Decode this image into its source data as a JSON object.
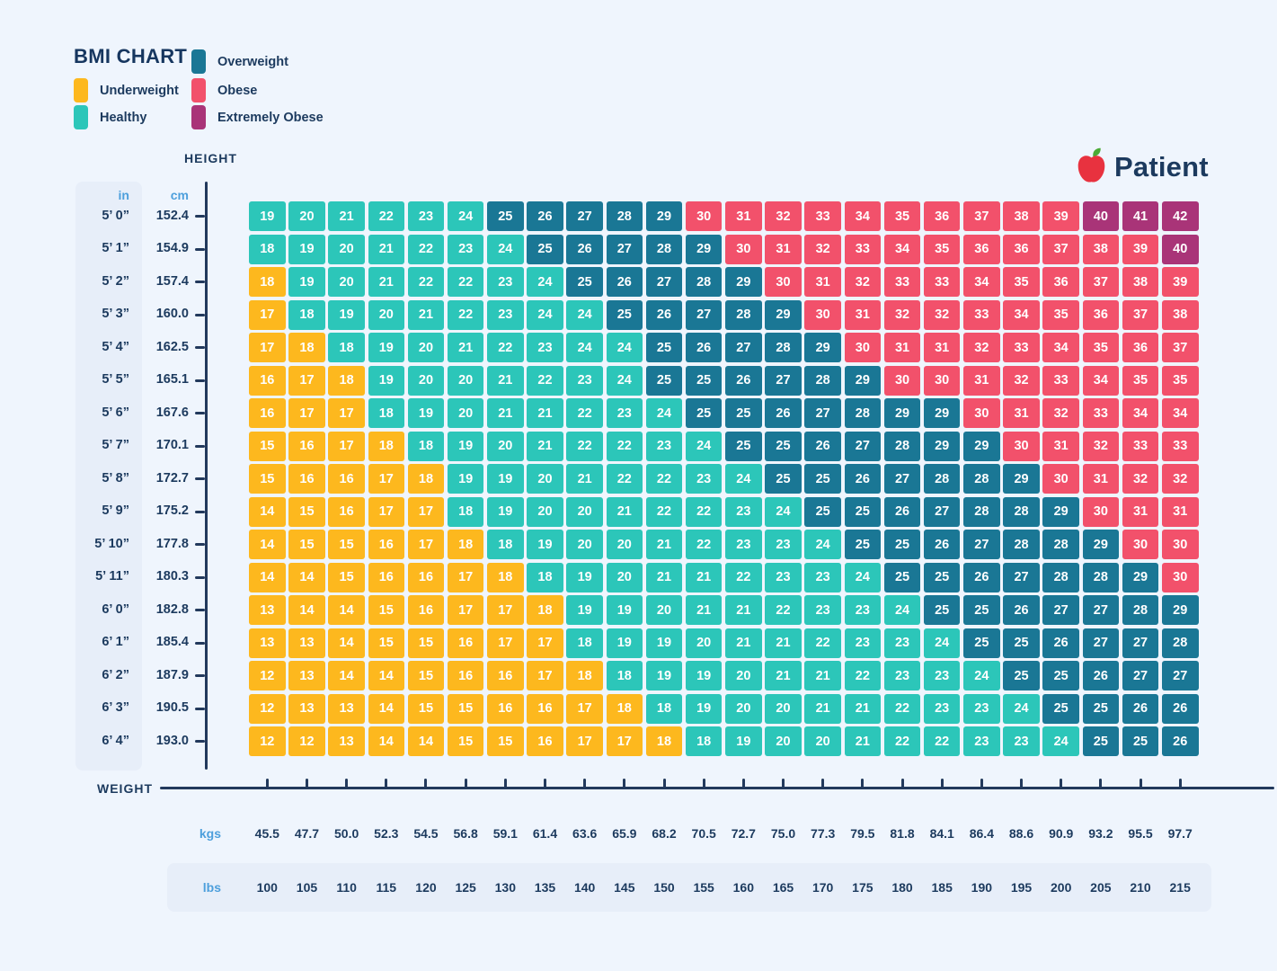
{
  "title": "BMI CHART",
  "legend": {
    "items": [
      {
        "key": "underweight",
        "label": "Underweight",
        "color": "#FDB81E"
      },
      {
        "key": "healthy",
        "label": "Healthy",
        "color": "#2CC6B9"
      },
      {
        "key": "overweight",
        "label": "Overweight",
        "color": "#1A7795"
      },
      {
        "key": "obese",
        "label": "Obese",
        "color": "#F2516B"
      },
      {
        "key": "extremely-obese",
        "label": "Extremely Obese",
        "color": "#A93478"
      }
    ]
  },
  "logo": {
    "brand": "Patient"
  },
  "axis": {
    "height_title": "HEIGHT",
    "weight_title": "WEIGHT",
    "in_header": "in",
    "cm_header": "cm",
    "kgs_label": "kgs",
    "lbs_label": "lbs"
  },
  "chart_data": {
    "type": "heatmap",
    "title": "BMI CHART",
    "x_axis_label": "WEIGHT",
    "y_axis_label": "HEIGHT",
    "category_colors": {
      "u": "#FDB81E",
      "h": "#2CC6B9",
      "o": "#1A7795",
      "b": "#F2516B",
      "e": "#A93478"
    },
    "category_names": {
      "u": "Underweight",
      "h": "Healthy",
      "o": "Overweight",
      "b": "Obese",
      "e": "Extremely Obese"
    },
    "x_axis": {
      "kgs": [
        "45.5",
        "47.7",
        "50.0",
        "52.3",
        "54.5",
        "56.8",
        "59.1",
        "61.4",
        "63.6",
        "65.9",
        "68.2",
        "70.5",
        "72.7",
        "75.0",
        "77.3",
        "79.5",
        "81.8",
        "84.1",
        "86.4",
        "88.6",
        "90.9",
        "93.2",
        "95.5",
        "97.7"
      ],
      "lbs": [
        "100",
        "105",
        "110",
        "115",
        "120",
        "125",
        "130",
        "135",
        "140",
        "145",
        "150",
        "155",
        "160",
        "165",
        "170",
        "175",
        "180",
        "185",
        "190",
        "195",
        "200",
        "205",
        "210",
        "215"
      ]
    },
    "rows": [
      {
        "ft": "5’ 0”",
        "cm": "152.4",
        "bmi": [
          19,
          20,
          21,
          22,
          23,
          24,
          25,
          26,
          27,
          28,
          29,
          30,
          31,
          32,
          33,
          34,
          35,
          36,
          37,
          38,
          39,
          40,
          41,
          42
        ],
        "cat": "hhhhhhooooobbbbbbbbbbeee"
      },
      {
        "ft": "5’ 1”",
        "cm": "154.9",
        "bmi": [
          18,
          19,
          20,
          21,
          22,
          23,
          24,
          25,
          26,
          27,
          28,
          29,
          30,
          31,
          32,
          33,
          34,
          35,
          36,
          36,
          37,
          38,
          39,
          40
        ],
        "cat": "hhhhhhhooooobbbbbbbbbbbe"
      },
      {
        "ft": "5’ 2”",
        "cm": "157.4",
        "bmi": [
          18,
          19,
          20,
          21,
          22,
          22,
          23,
          24,
          25,
          26,
          27,
          28,
          29,
          30,
          31,
          32,
          33,
          33,
          34,
          35,
          36,
          37,
          38,
          39
        ],
        "cat": "uhhhhhhhooooobbbbbbbbbbb"
      },
      {
        "ft": "5’ 3”",
        "cm": "160.0",
        "bmi": [
          17,
          18,
          19,
          20,
          21,
          22,
          23,
          24,
          24,
          25,
          26,
          27,
          28,
          29,
          30,
          31,
          32,
          32,
          33,
          34,
          35,
          36,
          37,
          38
        ],
        "cat": "uhhhhhhhhooooobbbbbbbbbb"
      },
      {
        "ft": "5’ 4”",
        "cm": "162.5",
        "bmi": [
          17,
          18,
          18,
          19,
          20,
          21,
          22,
          23,
          24,
          24,
          25,
          26,
          27,
          28,
          29,
          30,
          31,
          31,
          32,
          33,
          34,
          35,
          36,
          37
        ],
        "cat": "uuhhhhhhhhooooobbbbbbbbb"
      },
      {
        "ft": "5’ 5”",
        "cm": "165.1",
        "bmi": [
          16,
          17,
          18,
          19,
          20,
          20,
          21,
          22,
          23,
          24,
          25,
          25,
          26,
          27,
          28,
          29,
          30,
          30,
          31,
          32,
          33,
          34,
          35,
          35
        ],
        "cat": "uuuhhhhhhhoooooobbbbbbbb"
      },
      {
        "ft": "5’ 6”",
        "cm": "167.6",
        "bmi": [
          16,
          17,
          17,
          18,
          19,
          20,
          21,
          21,
          22,
          23,
          24,
          25,
          25,
          26,
          27,
          28,
          29,
          29,
          30,
          31,
          32,
          33,
          34,
          34
        ],
        "cat": "uuuhhhhhhhhooooooobbbbbb"
      },
      {
        "ft": "5’ 7”",
        "cm": "170.1",
        "bmi": [
          15,
          16,
          17,
          18,
          18,
          19,
          20,
          21,
          22,
          22,
          23,
          24,
          25,
          25,
          26,
          27,
          28,
          29,
          29,
          30,
          31,
          32,
          33,
          33
        ],
        "cat": "uuuuhhhhhhhhooooooobbbbb"
      },
      {
        "ft": "5’ 8”",
        "cm": "172.7",
        "bmi": [
          15,
          16,
          16,
          17,
          18,
          19,
          19,
          20,
          21,
          22,
          22,
          23,
          24,
          25,
          25,
          26,
          27,
          28,
          28,
          29,
          30,
          31,
          32,
          32
        ],
        "cat": "uuuuuhhhhhhhhooooooobbbb"
      },
      {
        "ft": "5’ 9”",
        "cm": "175.2",
        "bmi": [
          14,
          15,
          16,
          17,
          17,
          18,
          19,
          20,
          20,
          21,
          22,
          22,
          23,
          24,
          25,
          25,
          26,
          27,
          28,
          28,
          29,
          30,
          31,
          31
        ],
        "cat": "uuuuuhhhhhhhhhooooooobbb"
      },
      {
        "ft": "5’ 10”",
        "cm": "177.8",
        "bmi": [
          14,
          15,
          15,
          16,
          17,
          18,
          18,
          19,
          20,
          20,
          21,
          22,
          23,
          23,
          24,
          25,
          25,
          26,
          27,
          28,
          28,
          29,
          30,
          30
        ],
        "cat": "uuuuuuhhhhhhhhhooooooobb"
      },
      {
        "ft": "5’ 11”",
        "cm": "180.3",
        "bmi": [
          14,
          14,
          15,
          16,
          16,
          17,
          18,
          18,
          19,
          20,
          21,
          21,
          22,
          23,
          23,
          24,
          25,
          25,
          26,
          27,
          28,
          28,
          29,
          30
        ],
        "cat": "uuuuuuuhhhhhhhhhooooooob"
      },
      {
        "ft": "6’ 0”",
        "cm": "182.8",
        "bmi": [
          13,
          14,
          14,
          15,
          16,
          17,
          17,
          18,
          19,
          19,
          20,
          21,
          21,
          22,
          23,
          23,
          24,
          25,
          25,
          26,
          27,
          27,
          28,
          29
        ],
        "cat": "uuuuuuuuhhhhhhhhhooooooo"
      },
      {
        "ft": "6’ 1”",
        "cm": "185.4",
        "bmi": [
          13,
          13,
          14,
          15,
          15,
          16,
          17,
          17,
          18,
          19,
          19,
          20,
          21,
          21,
          22,
          23,
          23,
          24,
          25,
          25,
          26,
          27,
          27,
          28
        ],
        "cat": "uuuuuuuuhhhhhhhhhhoooooo"
      },
      {
        "ft": "6’ 2”",
        "cm": "187.9",
        "bmi": [
          12,
          13,
          14,
          14,
          15,
          16,
          16,
          17,
          18,
          18,
          19,
          19,
          20,
          21,
          21,
          22,
          23,
          23,
          24,
          25,
          25,
          26,
          27,
          27
        ],
        "cat": "uuuuuuuuuhhhhhhhhhhooooo"
      },
      {
        "ft": "6’ 3”",
        "cm": "190.5",
        "bmi": [
          12,
          13,
          13,
          14,
          15,
          15,
          16,
          16,
          17,
          18,
          18,
          19,
          20,
          20,
          21,
          21,
          22,
          23,
          23,
          24,
          25,
          25,
          26,
          26
        ],
        "cat": "uuuuuuuuuuhhhhhhhhhhoooo"
      },
      {
        "ft": "6’ 4”",
        "cm": "193.0",
        "bmi": [
          12,
          12,
          13,
          14,
          14,
          15,
          15,
          16,
          17,
          17,
          18,
          18,
          19,
          20,
          20,
          21,
          22,
          22,
          23,
          23,
          24,
          25,
          25,
          26
        ],
        "cat": "uuuuuuuuuuuhhhhhhhhhhooo"
      }
    ]
  }
}
